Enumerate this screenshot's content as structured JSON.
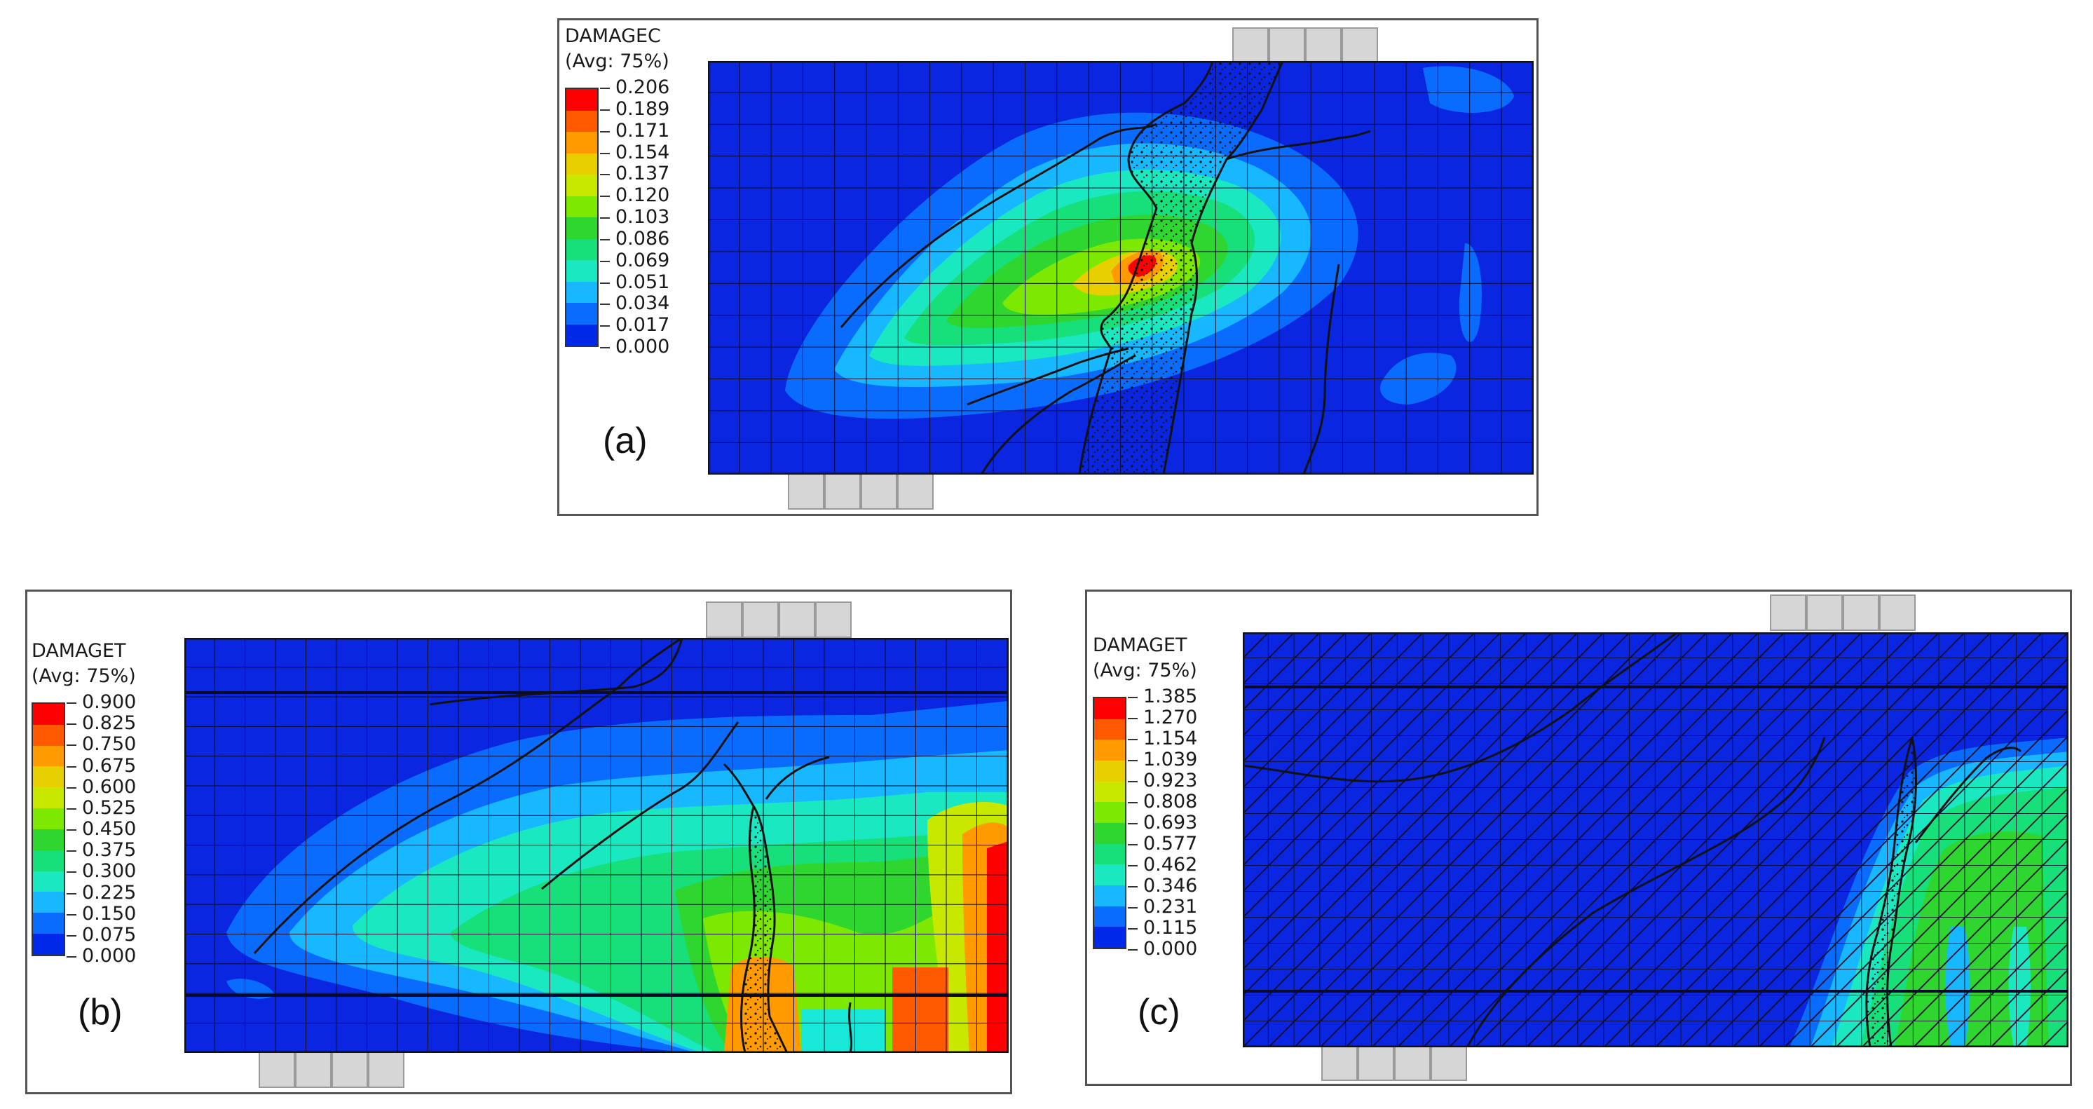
{
  "panels": {
    "a": {
      "label": "(a)",
      "legend_title": "DAMAGEC",
      "legend_avg": "(Avg: 75%)",
      "ticks": [
        "0.206",
        "0.189",
        "0.171",
        "0.154",
        "0.137",
        "0.120",
        "0.103",
        "0.086",
        "0.069",
        "0.051",
        "0.034",
        "0.017",
        "0.000"
      ]
    },
    "b": {
      "label": "(b)",
      "legend_title": "DAMAGET",
      "legend_avg": "(Avg: 75%)",
      "ticks": [
        "0.900",
        "0.825",
        "0.750",
        "0.675",
        "0.600",
        "0.525",
        "0.450",
        "0.375",
        "0.300",
        "0.225",
        "0.150",
        "0.075",
        "0.000"
      ]
    },
    "c": {
      "label": "(c)",
      "legend_title": "DAMAGET",
      "legend_avg": "(Avg: 75%)",
      "ticks": [
        "1.385",
        "1.270",
        "1.154",
        "1.039",
        "0.923",
        "0.808",
        "0.693",
        "0.577",
        "0.462",
        "0.346",
        "0.231",
        "0.115",
        "0.000"
      ]
    }
  },
  "colors": {
    "contour_scale": [
      "#ff0000",
      "#ff5a00",
      "#ff9a00",
      "#e8d000",
      "#c8e800",
      "#7de800",
      "#2fd62f",
      "#17e07a",
      "#19e8c0",
      "#17b8ff",
      "#0a6cff",
      "#0028e8",
      "#0000e0"
    ],
    "background_level": "#0a26e0",
    "support": "#d6d6d6"
  }
}
